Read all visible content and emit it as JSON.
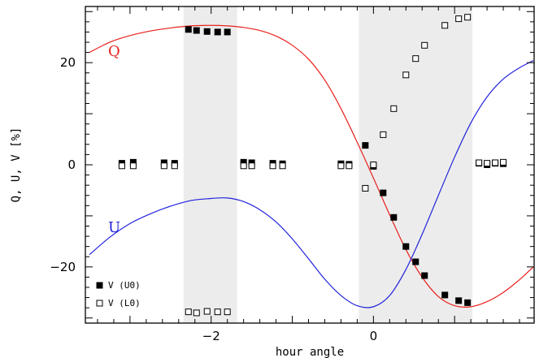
{
  "chart_data": {
    "type": "scatter",
    "title": "",
    "xlabel": "hour angle",
    "ylabel": "Q, U, V [%]",
    "xlim": [
      -3.55,
      1.98
    ],
    "ylim": [
      -31,
      31
    ],
    "grid": false,
    "x_ticks": [
      {
        "value": -2,
        "label": "−2"
      },
      {
        "value": 0,
        "label": "0"
      }
    ],
    "y_ticks": [
      {
        "value": 20,
        "label": "20"
      },
      {
        "value": 0,
        "label": "0"
      },
      {
        "value": -20,
        "label": "−20"
      }
    ],
    "x_minor_step": 0.2,
    "y_minor_step": 2,
    "shaded_regions": [
      {
        "x_start": -2.34,
        "x_end": -1.68,
        "color": "#ececec"
      },
      {
        "x_start": -0.18,
        "x_end": 1.22,
        "color": "#ececec"
      }
    ],
    "series": [
      {
        "name": "V (U0)",
        "kind": "points",
        "marker": "filled-square",
        "color": "#000000",
        "x": [
          -3.1,
          -2.96,
          -2.58,
          -2.45,
          -2.28,
          -2.18,
          -2.05,
          -1.92,
          -1.8,
          -1.6,
          -1.5,
          -1.24,
          -1.12,
          -0.4,
          -0.3,
          -0.1,
          0.0,
          0.12,
          0.25,
          0.4,
          0.52,
          0.63,
          0.88,
          1.05,
          1.16,
          1.3,
          1.4,
          1.5,
          1.6
        ],
        "y": [
          0.3,
          0.5,
          0.4,
          0.3,
          26.5,
          26.3,
          26.1,
          26.0,
          26.0,
          0.5,
          0.4,
          0.3,
          0.2,
          0.2,
          0.1,
          3.8,
          -0.3,
          -5.5,
          -10.3,
          -16.0,
          -19.0,
          -21.7,
          -25.5,
          -26.6,
          -27.0,
          0.3,
          0.0,
          0.3,
          0.2
        ]
      },
      {
        "name": "V (L0)",
        "kind": "points",
        "marker": "open-square",
        "color": "#000000",
        "x": [
          -3.1,
          -2.96,
          -2.58,
          -2.45,
          -2.28,
          -2.18,
          -2.05,
          -1.92,
          -1.8,
          -1.6,
          -1.5,
          -1.24,
          -1.12,
          -0.4,
          -0.3,
          -0.1,
          0.0,
          0.12,
          0.25,
          0.4,
          0.52,
          0.63,
          0.88,
          1.05,
          1.16,
          1.3,
          1.4,
          1.5,
          1.6
        ],
        "y": [
          -0.2,
          -0.2,
          -0.2,
          -0.2,
          -28.8,
          -29.0,
          -28.7,
          -28.8,
          -28.8,
          -0.2,
          -0.2,
          -0.2,
          -0.2,
          -0.2,
          -0.2,
          -4.6,
          0.0,
          5.9,
          11.0,
          17.6,
          20.8,
          23.4,
          27.3,
          28.6,
          28.9,
          0.4,
          0.3,
          0.4,
          0.5
        ]
      },
      {
        "name": "Q",
        "kind": "curve",
        "color": "#e8201c",
        "x": [
          -3.5,
          -3.25,
          -3.0,
          -2.75,
          -2.5,
          -2.25,
          -2.0,
          -1.8,
          -1.6,
          -1.4,
          -1.2,
          -1.0,
          -0.8,
          -0.6,
          -0.4,
          -0.2,
          0.0,
          0.2,
          0.4,
          0.6,
          0.8,
          1.0,
          1.2,
          1.4,
          1.6,
          1.8,
          1.97
        ],
        "y": [
          22.0,
          24.0,
          25.3,
          26.2,
          26.8,
          27.2,
          27.3,
          27.2,
          26.9,
          26.3,
          25.2,
          23.4,
          20.7,
          16.6,
          11.0,
          4.4,
          -2.6,
          -9.8,
          -16.6,
          -22.0,
          -25.8,
          -27.6,
          -27.8,
          -26.8,
          -25.0,
          -22.5,
          -20.0
        ]
      },
      {
        "name": "U",
        "kind": "curve",
        "color": "#2222dd",
        "x": [
          -3.5,
          -3.25,
          -3.0,
          -2.75,
          -2.5,
          -2.25,
          -2.0,
          -1.8,
          -1.6,
          -1.4,
          -1.2,
          -1.0,
          -0.8,
          -0.6,
          -0.4,
          -0.2,
          0.0,
          0.2,
          0.4,
          0.6,
          0.8,
          1.0,
          1.2,
          1.4,
          1.6,
          1.8,
          1.97
        ],
        "y": [
          -17.6,
          -14.2,
          -11.5,
          -9.6,
          -8.1,
          -7.0,
          -6.6,
          -6.5,
          -7.2,
          -8.8,
          -11.2,
          -14.5,
          -18.4,
          -22.4,
          -25.6,
          -27.6,
          -27.8,
          -25.6,
          -20.5,
          -13.6,
          -6.0,
          1.5,
          8.2,
          13.3,
          16.8,
          19.0,
          20.4
        ]
      }
    ],
    "curve_labels": [
      {
        "text": "Q",
        "x": -3.27,
        "y": 21.3,
        "color": "#e8201c"
      },
      {
        "text": "U",
        "x": -3.27,
        "y": -13.2,
        "color": "#2222dd"
      }
    ],
    "legend": {
      "position": "bottom-left",
      "entries": [
        {
          "marker": "filled-square",
          "label": "V (U0)"
        },
        {
          "marker": "open-square",
          "label": "V (L0)"
        }
      ]
    }
  }
}
